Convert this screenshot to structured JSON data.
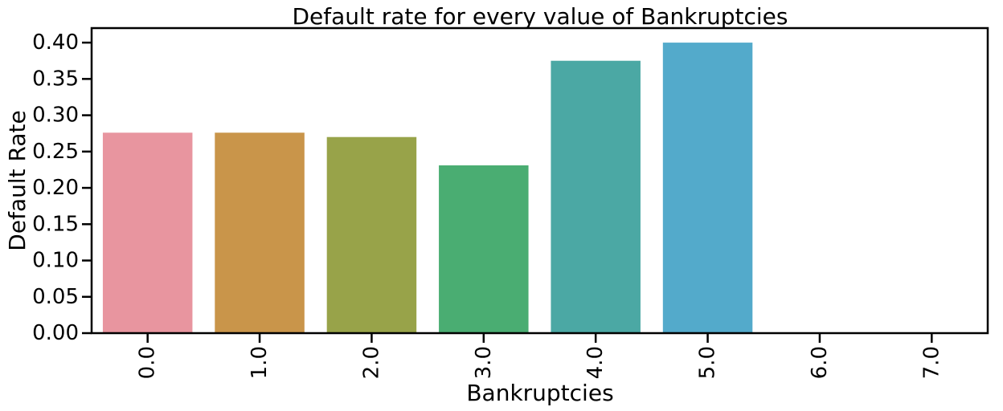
{
  "chart_data": {
    "type": "bar",
    "title": "Default rate for every value of Bankruptcies",
    "xlabel": "Bankruptcies",
    "ylabel": "Default Rate",
    "categories": [
      "0.0",
      "1.0",
      "2.0",
      "3.0",
      "4.0",
      "5.0",
      "6.0",
      "7.0"
    ],
    "values": [
      0.276,
      0.276,
      0.27,
      0.231,
      0.375,
      0.4,
      0.0,
      0.0
    ],
    "colors": [
      "#e8959f",
      "#c9954a",
      "#98a349",
      "#4aad72",
      "#4ba8a4",
      "#53aacb",
      "#8b9ce8",
      "#d18ee6"
    ],
    "ylim": [
      0,
      0.42
    ],
    "yticks": [
      "0.00",
      "0.05",
      "0.10",
      "0.15",
      "0.20",
      "0.25",
      "0.30",
      "0.35",
      "0.40"
    ],
    "grid": false,
    "legend": "none"
  }
}
